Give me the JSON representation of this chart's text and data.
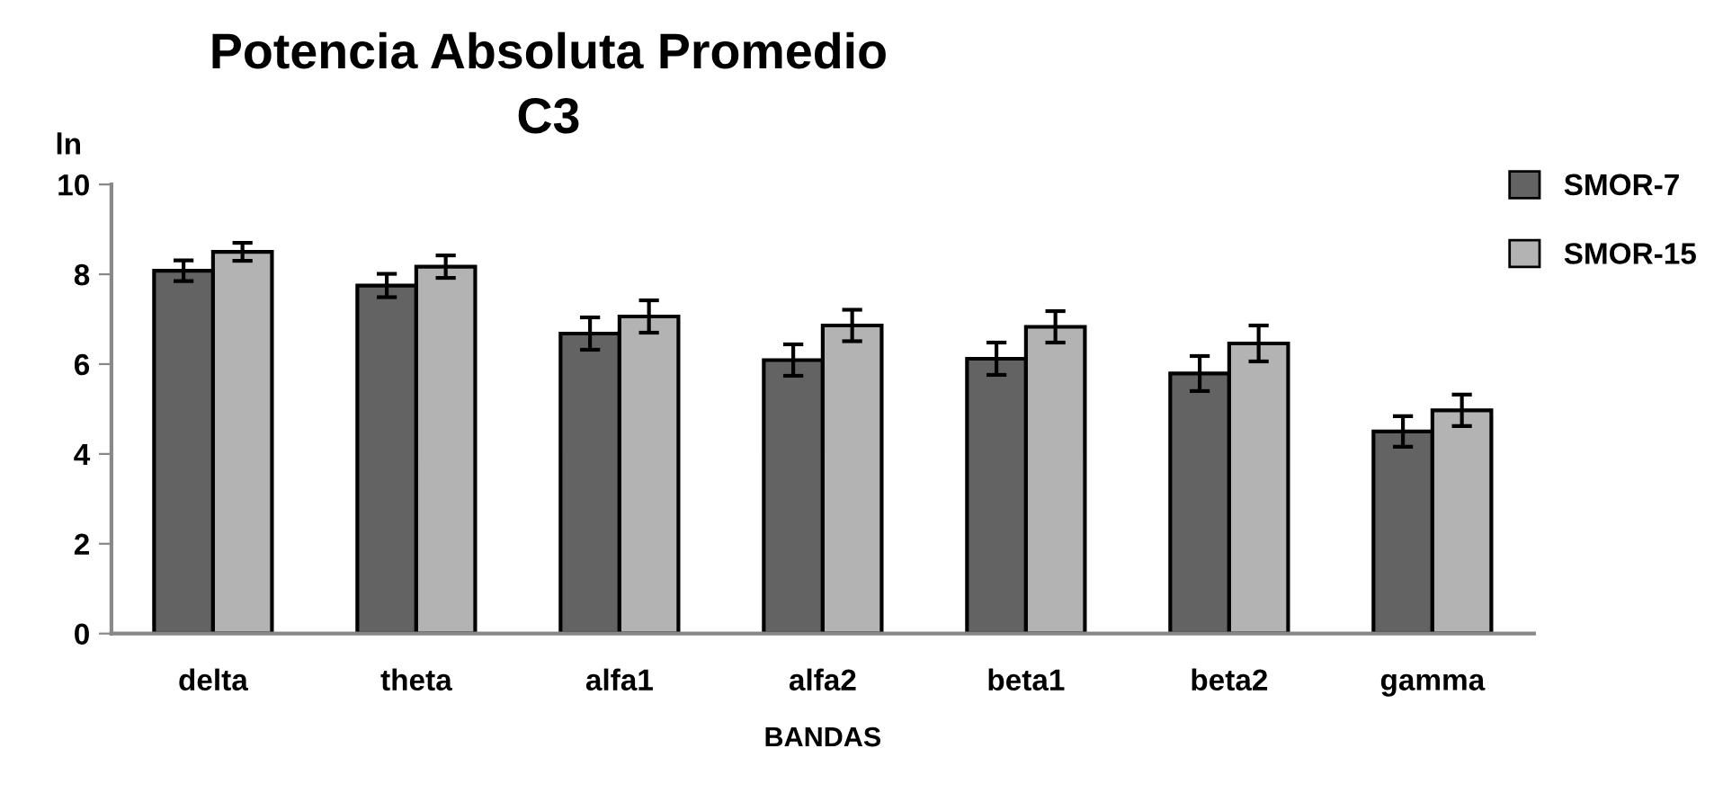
{
  "chart_data": {
    "type": "bar",
    "title": "Potencia Absoluta Promedio\nC3",
    "ylabel": "ln",
    "xlabel": "BANDAS",
    "categories": [
      "delta",
      "theta",
      "alfa1",
      "alfa2",
      "beta1",
      "beta2",
      "gamma"
    ],
    "series": [
      {
        "name": "SMOR-7",
        "color": "#636363",
        "values": [
          8.08,
          7.75,
          6.68,
          6.09,
          6.12,
          5.79,
          4.5
        ],
        "errors": [
          0.23,
          0.26,
          0.36,
          0.35,
          0.36,
          0.39,
          0.34
        ]
      },
      {
        "name": "SMOR-15",
        "color": "#b3b3b3",
        "values": [
          8.5,
          8.17,
          7.06,
          6.86,
          6.83,
          6.46,
          4.97
        ],
        "errors": [
          0.2,
          0.25,
          0.36,
          0.35,
          0.35,
          0.4,
          0.35
        ]
      }
    ],
    "ylim": [
      0,
      10
    ],
    "yticks": [
      0,
      2,
      4,
      6,
      8,
      10
    ],
    "grid": false,
    "legend": "top right"
  }
}
